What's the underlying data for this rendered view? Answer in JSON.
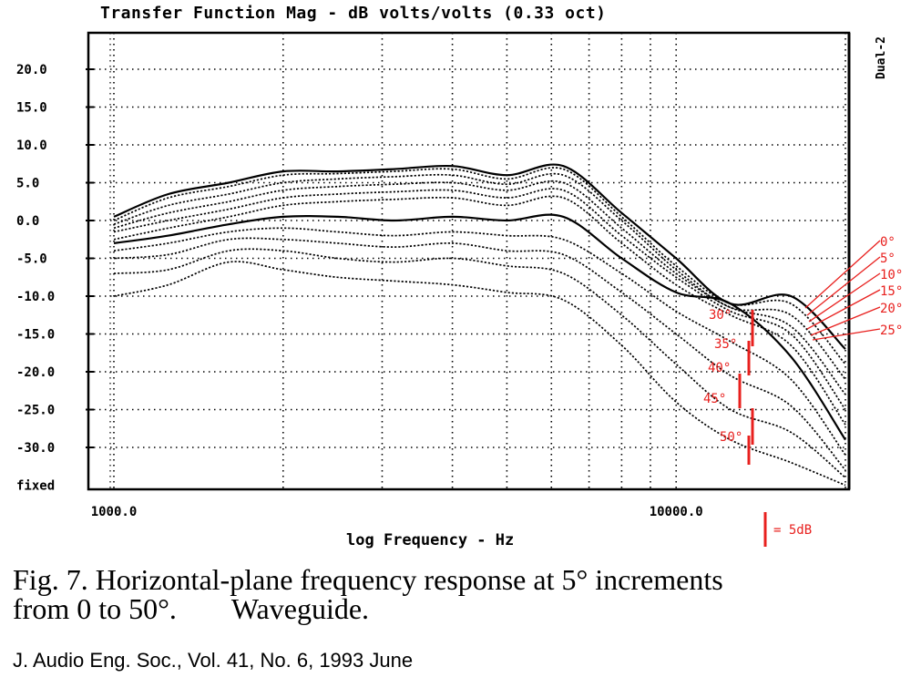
{
  "chart_data": {
    "type": "line",
    "title": "Transfer Function Mag - dB volts/volts (0.33 oct)",
    "side_label": "Dual-2",
    "xlabel": "log Frequency - Hz",
    "ylabel": "",
    "x_scale": "log",
    "xlim": [
      1000,
      20000
    ],
    "ylim": [
      -35,
      25
    ],
    "x_tick_labels": [
      {
        "value": 1000,
        "label": "1000.0"
      },
      {
        "value": 10000,
        "label": "10000.0"
      }
    ],
    "x_grid": [
      1000,
      2000,
      3000,
      4000,
      5000,
      6000,
      7000,
      8000,
      9000,
      10000,
      20000
    ],
    "y_ticks": [
      {
        "value": 20,
        "label": "20.0"
      },
      {
        "value": 15,
        "label": "15.0"
      },
      {
        "value": 10,
        "label": "10.0"
      },
      {
        "value": 5,
        "label": "5.0"
      },
      {
        "value": 0,
        "label": "0.0"
      },
      {
        "value": -5,
        "label": "-5.0"
      },
      {
        "value": -10,
        "label": "-10.0"
      },
      {
        "value": -15,
        "label": "-15.0"
      },
      {
        "value": -20,
        "label": "-20.0"
      },
      {
        "value": -25,
        "label": "-25.0"
      },
      {
        "value": -30,
        "label": "-30.0"
      },
      {
        "value": -35,
        "label": "fixed"
      }
    ],
    "grid": true,
    "x": [
      1000,
      1250,
      1600,
      2000,
      2500,
      3150,
      4000,
      5000,
      6300,
      8000,
      10000,
      12500,
      16000,
      20000
    ],
    "series": [
      {
        "angle": 0,
        "values": [
          0.5,
          3.5,
          5.0,
          6.5,
          6.5,
          6.8,
          7.2,
          6.0,
          7.2,
          1.0,
          -5.0,
          -11.0,
          -10.0,
          -17.0
        ]
      },
      {
        "angle": 5,
        "values": [
          0.0,
          3.0,
          4.5,
          6.0,
          6.2,
          6.5,
          6.8,
          5.5,
          6.8,
          0.5,
          -6.0,
          -11.0,
          -11.0,
          -19.0
        ]
      },
      {
        "angle": 10,
        "values": [
          -0.5,
          2.0,
          3.5,
          5.0,
          5.5,
          5.8,
          6.0,
          4.8,
          6.0,
          0.0,
          -6.5,
          -11.5,
          -12.5,
          -21.0
        ]
      },
      {
        "angle": 15,
        "values": [
          -1.0,
          1.0,
          2.5,
          4.0,
          4.5,
          4.8,
          5.0,
          4.0,
          5.0,
          -1.0,
          -7.0,
          -11.5,
          -14.0,
          -23.0
        ]
      },
      {
        "angle": 20,
        "values": [
          -1.5,
          0.0,
          1.5,
          3.0,
          3.5,
          3.8,
          4.0,
          3.0,
          4.0,
          -2.0,
          -7.5,
          -12.0,
          -15.0,
          -25.0
        ]
      },
      {
        "angle": 25,
        "values": [
          -2.5,
          -1.0,
          0.5,
          2.0,
          2.5,
          2.8,
          3.0,
          2.0,
          3.0,
          -3.0,
          -8.5,
          -12.5,
          -16.5,
          -27.0
        ]
      },
      {
        "angle": 30,
        "values": [
          -3.0,
          -2.0,
          -0.5,
          0.5,
          0.5,
          0.0,
          0.5,
          0.0,
          0.5,
          -5.0,
          -9.5,
          -11.0,
          -18.0,
          -29.0
        ]
      },
      {
        "angle": 35,
        "values": [
          -4.0,
          -3.0,
          -1.5,
          -1.0,
          -1.5,
          -2.0,
          -1.5,
          -2.0,
          -2.5,
          -7.0,
          -12.0,
          -16.0,
          -21.0,
          -31.0
        ]
      },
      {
        "angle": 40,
        "values": [
          -5.0,
          -4.5,
          -2.5,
          -2.5,
          -3.0,
          -3.5,
          -3.0,
          -4.0,
          -4.5,
          -9.5,
          -15.0,
          -20.5,
          -24.5,
          -33.0
        ]
      },
      {
        "angle": 45,
        "values": [
          -7.0,
          -6.5,
          -4.0,
          -4.0,
          -5.0,
          -5.5,
          -5.0,
          -6.0,
          -7.0,
          -12.5,
          -19.0,
          -25.0,
          -28.0,
          -34.0
        ]
      },
      {
        "angle": 50,
        "values": [
          -10.0,
          -8.5,
          -5.5,
          -6.5,
          -7.5,
          -8.0,
          -8.5,
          -9.5,
          -10.5,
          -16.5,
          -24.0,
          -29.0,
          -32.0,
          -35.0
        ]
      }
    ],
    "annotations": {
      "angle_labels_right": [
        "0°",
        "5°",
        "10°",
        "15°",
        "20°",
        "25°"
      ],
      "angle_labels_left": [
        "30°",
        "35°",
        "40°",
        "45°",
        "50°"
      ],
      "scale_bar": "= 5dB"
    },
    "colors": {
      "trace": "#000000",
      "annotation": "#e8201e",
      "grid": "#000000"
    }
  },
  "caption": {
    "line1": "Fig. 7. Horizontal-plane frequency response at 5° increments",
    "line2_a": "from 0 to 50°.",
    "line2_b": "Waveguide."
  },
  "citation": "J. Audio Eng. Soc., Vol. 41, No. 6, 1993 June"
}
